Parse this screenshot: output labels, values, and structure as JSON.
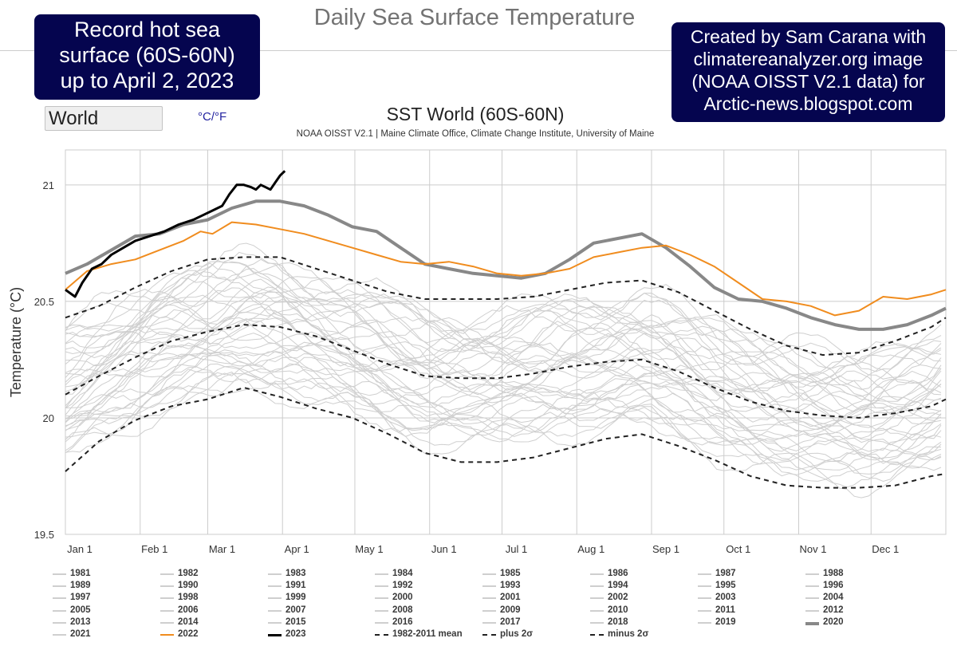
{
  "header": {
    "title": "Daily Sea Surface Temperature",
    "badge_left": [
      "Record hot sea",
      "surface (60S-60N)",
      "up to April 2, 2023"
    ],
    "badge_right": [
      "Created by Sam Carana with",
      "climatereanalyzer.org image",
      "(NOAA OISST V2.1 data) for",
      "Arctic-news.blogspot.com"
    ]
  },
  "controls": {
    "region_value": "World",
    "unit_toggle": "°C/°F"
  },
  "colors": {
    "badge_bg": "#05054f",
    "climatology_gray": "#cfcfcf",
    "year_2020": "#888888",
    "year_2022": "#f08c1e",
    "year_2023": "#000000",
    "mean_sigma": "#222222"
  },
  "chart_data": {
    "type": "line",
    "title": "SST World (60S-60N)",
    "subtitle": "NOAA OISST V2.1 | Maine Climate Office, Climate Change Institute, University of Maine",
    "xlabel": "",
    "ylabel": "Temperature (°C)",
    "x_unit": "day of year",
    "xlim": [
      1,
      366
    ],
    "ylim": [
      19.5,
      21.15
    ],
    "yticks": [
      "19.5",
      "20",
      "20.5",
      "21"
    ],
    "ytick_values": [
      19.5,
      20,
      20.5,
      21
    ],
    "xticks": [
      "Jan 1",
      "Feb 1",
      "Mar 1",
      "Apr 1",
      "May 1",
      "Jun 1",
      "Jul 1",
      "Aug 1",
      "Sep 1",
      "Oct 1",
      "Nov 1",
      "Dec 1"
    ],
    "xtick_days": [
      1,
      32,
      60,
      91,
      121,
      152,
      182,
      213,
      244,
      274,
      305,
      335
    ],
    "grid": true,
    "legend_position": "bottom",
    "series": [
      {
        "name": "2023",
        "style": "solid-black",
        "x": [
          1,
          5,
          8,
          12,
          16,
          20,
          25,
          30,
          36,
          42,
          48,
          54,
          58,
          62,
          66,
          69,
          72,
          75,
          78,
          80,
          82,
          84,
          86,
          88,
          90,
          92
        ],
        "values": [
          20.55,
          20.52,
          20.58,
          20.64,
          20.66,
          20.7,
          20.73,
          20.76,
          20.78,
          20.8,
          20.83,
          20.85,
          20.87,
          20.89,
          20.91,
          20.96,
          21.0,
          21.0,
          20.99,
          20.98,
          21.0,
          20.99,
          20.98,
          21.01,
          21.04,
          21.06
        ]
      },
      {
        "name": "2022",
        "style": "orange",
        "x": [
          1,
          10,
          20,
          30,
          40,
          50,
          57,
          62,
          70,
          80,
          90,
          100,
          110,
          120,
          130,
          140,
          150,
          160,
          170,
          180,
          190,
          200,
          210,
          220,
          230,
          240,
          250,
          260,
          270,
          280,
          290,
          300,
          310,
          320,
          330,
          340,
          350,
          360,
          366
        ],
        "values": [
          20.55,
          20.63,
          20.66,
          20.68,
          20.72,
          20.76,
          20.8,
          20.79,
          20.84,
          20.83,
          20.81,
          20.79,
          20.76,
          20.73,
          20.7,
          20.67,
          20.66,
          20.67,
          20.65,
          20.62,
          20.61,
          20.62,
          20.64,
          20.69,
          20.71,
          20.73,
          20.74,
          20.7,
          20.65,
          20.58,
          20.51,
          20.5,
          20.48,
          20.44,
          20.46,
          20.52,
          20.51,
          20.53,
          20.55
        ]
      },
      {
        "name": "2020",
        "style": "thick-gray",
        "x": [
          1,
          10,
          20,
          30,
          40,
          50,
          60,
          70,
          80,
          90,
          100,
          110,
          120,
          130,
          140,
          150,
          160,
          170,
          180,
          190,
          200,
          210,
          220,
          230,
          240,
          250,
          260,
          270,
          280,
          290,
          300,
          310,
          320,
          330,
          340,
          350,
          360,
          366
        ],
        "values": [
          20.62,
          20.66,
          20.72,
          20.78,
          20.79,
          20.83,
          20.85,
          20.9,
          20.93,
          20.93,
          20.91,
          20.87,
          20.82,
          20.8,
          20.73,
          20.66,
          20.64,
          20.62,
          20.61,
          20.6,
          20.62,
          20.68,
          20.75,
          20.77,
          20.79,
          20.73,
          20.65,
          20.56,
          20.51,
          20.5,
          20.47,
          20.43,
          20.4,
          20.38,
          20.38,
          20.4,
          20.44,
          20.47
        ]
      },
      {
        "name": "1982-2011 mean",
        "style": "dashed-mean",
        "x": [
          1,
          15,
          30,
          45,
          60,
          75,
          90,
          105,
          120,
          135,
          150,
          165,
          180,
          195,
          210,
          225,
          240,
          255,
          270,
          285,
          300,
          315,
          330,
          345,
          360,
          366
        ],
        "values": [
          20.1,
          20.18,
          20.26,
          20.33,
          20.37,
          20.4,
          20.39,
          20.35,
          20.29,
          20.23,
          20.18,
          20.17,
          20.17,
          20.19,
          20.22,
          20.24,
          20.25,
          20.2,
          20.13,
          20.07,
          20.03,
          20.01,
          20.0,
          20.02,
          20.05,
          20.08
        ]
      },
      {
        "name": "plus 2σ",
        "style": "dashed-sigma",
        "x": [
          1,
          15,
          30,
          45,
          60,
          75,
          90,
          105,
          120,
          135,
          150,
          165,
          180,
          195,
          210,
          225,
          240,
          255,
          270,
          285,
          300,
          315,
          330,
          345,
          360,
          366
        ],
        "values": [
          20.43,
          20.48,
          20.56,
          20.63,
          20.68,
          20.69,
          20.69,
          20.64,
          20.59,
          20.54,
          20.51,
          20.51,
          20.51,
          20.52,
          20.55,
          20.58,
          20.59,
          20.54,
          20.46,
          20.38,
          20.31,
          20.27,
          20.28,
          20.33,
          20.39,
          20.43
        ]
      },
      {
        "name": "minus 2σ",
        "style": "dashed-sigma",
        "x": [
          1,
          15,
          30,
          45,
          60,
          75,
          90,
          105,
          120,
          135,
          150,
          165,
          180,
          195,
          210,
          225,
          240,
          255,
          270,
          285,
          300,
          315,
          330,
          345,
          360,
          366
        ],
        "values": [
          19.77,
          19.9,
          19.99,
          20.05,
          20.08,
          20.13,
          20.09,
          20.04,
          20.0,
          19.93,
          19.85,
          19.81,
          19.81,
          19.83,
          19.87,
          19.91,
          19.93,
          19.88,
          19.82,
          19.75,
          19.71,
          19.7,
          19.7,
          19.71,
          19.75,
          19.76
        ]
      }
    ],
    "legend": [
      {
        "label": "1981",
        "style": "gray"
      },
      {
        "label": "1982",
        "style": "gray"
      },
      {
        "label": "1983",
        "style": "gray"
      },
      {
        "label": "1984",
        "style": "gray"
      },
      {
        "label": "1985",
        "style": "gray"
      },
      {
        "label": "1986",
        "style": "gray"
      },
      {
        "label": "1987",
        "style": "gray"
      },
      {
        "label": "1988",
        "style": "gray"
      },
      {
        "label": "1989",
        "style": "gray"
      },
      {
        "label": "1990",
        "style": "gray"
      },
      {
        "label": "1991",
        "style": "gray"
      },
      {
        "label": "1992",
        "style": "gray"
      },
      {
        "label": "1993",
        "style": "gray"
      },
      {
        "label": "1994",
        "style": "gray"
      },
      {
        "label": "1995",
        "style": "gray"
      },
      {
        "label": "1996",
        "style": "gray"
      },
      {
        "label": "1997",
        "style": "gray"
      },
      {
        "label": "1998",
        "style": "gray"
      },
      {
        "label": "1999",
        "style": "gray"
      },
      {
        "label": "2000",
        "style": "gray"
      },
      {
        "label": "2001",
        "style": "gray"
      },
      {
        "label": "2002",
        "style": "gray"
      },
      {
        "label": "2003",
        "style": "gray"
      },
      {
        "label": "2004",
        "style": "gray"
      },
      {
        "label": "2005",
        "style": "gray"
      },
      {
        "label": "2006",
        "style": "gray"
      },
      {
        "label": "2007",
        "style": "gray"
      },
      {
        "label": "2008",
        "style": "gray"
      },
      {
        "label": "2009",
        "style": "gray"
      },
      {
        "label": "2010",
        "style": "gray"
      },
      {
        "label": "2011",
        "style": "gray"
      },
      {
        "label": "2012",
        "style": "gray"
      },
      {
        "label": "2013",
        "style": "gray"
      },
      {
        "label": "2014",
        "style": "gray"
      },
      {
        "label": "2015",
        "style": "gray"
      },
      {
        "label": "2016",
        "style": "gray"
      },
      {
        "label": "2017",
        "style": "gray"
      },
      {
        "label": "2018",
        "style": "gray"
      },
      {
        "label": "2019",
        "style": "gray"
      },
      {
        "label": "2020",
        "style": "thick-gray"
      },
      {
        "label": "2021",
        "style": "gray"
      },
      {
        "label": "2022",
        "style": "orange"
      },
      {
        "label": "2023",
        "style": "solid-black"
      },
      {
        "label": "1982-2011 mean",
        "style": "dashed-mean"
      },
      {
        "label": "plus 2σ",
        "style": "dashed-sigma"
      },
      {
        "label": "minus 2σ",
        "style": "dashed-sigma"
      }
    ]
  }
}
